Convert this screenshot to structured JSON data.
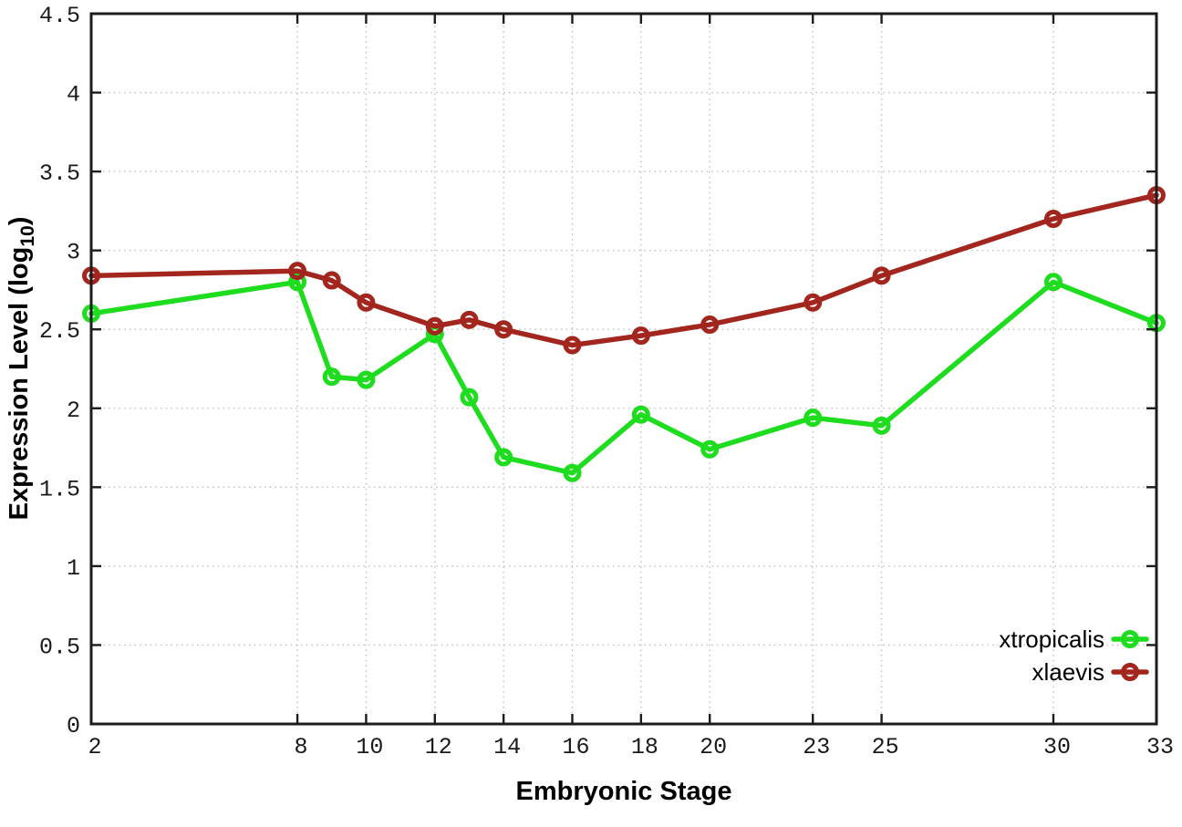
{
  "chart_data": {
    "type": "line",
    "title": "",
    "xlabel": "Embryonic Stage",
    "ylabel": "Expression Level (log10)",
    "ylabel_parts": {
      "main": "Expression Level (log",
      "sub": "10",
      "end": ")"
    },
    "xlim": [
      2,
      33
    ],
    "ylim": [
      0,
      4.5
    ],
    "grid": true,
    "legend_position": "bottom-right",
    "x_ticks": [
      2,
      8,
      10,
      12,
      14,
      16,
      18,
      20,
      23,
      25,
      30,
      33
    ],
    "x_tick_labels": [
      "2",
      "8",
      "10",
      "12",
      "14",
      "16",
      "18",
      "20",
      "23",
      "25",
      "30",
      "33"
    ],
    "y_ticks": [
      0,
      0.5,
      1,
      1.5,
      2,
      2.5,
      3,
      3.5,
      4,
      4.5
    ],
    "y_tick_labels": [
      "0",
      "0.5",
      "1",
      "1.5",
      "2",
      "2.5",
      "3",
      "3.5",
      "4",
      "4.5"
    ],
    "x": [
      2,
      8,
      9,
      10,
      12,
      13,
      14,
      16,
      18,
      20,
      23,
      25,
      30,
      33
    ],
    "series": [
      {
        "name": "xtropicalis",
        "color": "#1edc1e",
        "values": [
          2.6,
          2.8,
          2.2,
          2.18,
          2.47,
          2.07,
          1.69,
          1.59,
          1.96,
          1.74,
          1.94,
          1.89,
          2.8,
          2.54
        ]
      },
      {
        "name": "xlaevis",
        "color": "#a3261e",
        "values": [
          2.84,
          2.87,
          2.81,
          2.67,
          2.52,
          2.56,
          2.5,
          2.4,
          2.46,
          2.53,
          2.67,
          2.84,
          3.2,
          3.35
        ]
      }
    ]
  },
  "style": {
    "axis_color": "#1c1c1c",
    "grid_color": "#bdbdbd",
    "background": "#ffffff",
    "line_width": 5.5,
    "marker_radius": 7.5,
    "marker_stroke": 5
  }
}
